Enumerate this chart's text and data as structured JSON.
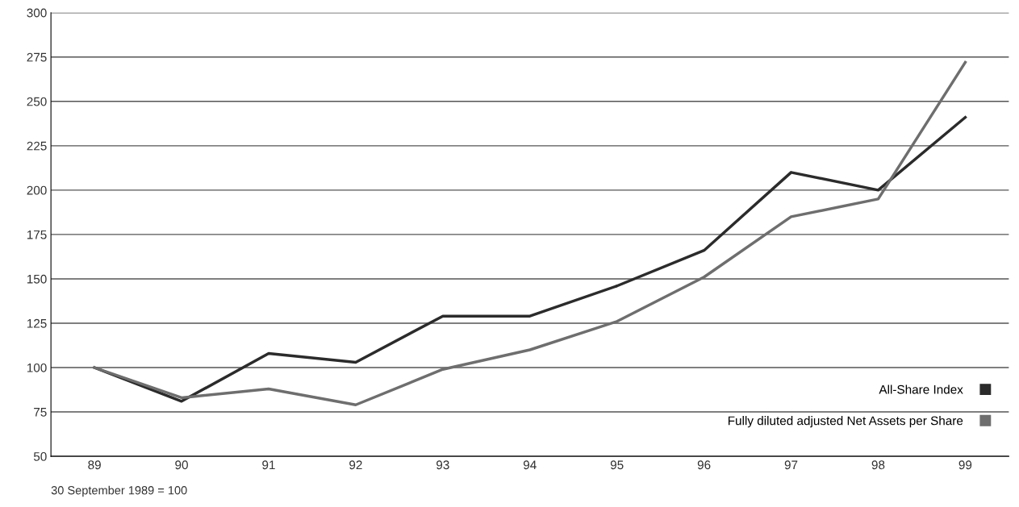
{
  "chart_data": {
    "type": "line",
    "categories": [
      "89",
      "90",
      "91",
      "92",
      "93",
      "94",
      "95",
      "96",
      "97",
      "98",
      "99"
    ],
    "series": [
      {
        "name": "All-Share Index",
        "color": "#2b2b2b",
        "values": [
          100,
          81,
          108,
          103,
          129,
          129,
          146,
          166,
          210,
          200,
          241
        ]
      },
      {
        "name": "Fully diluted adjusted Net Assets per Share",
        "color": "#6e6e6e",
        "values": [
          100,
          83,
          88,
          79,
          99,
          110,
          126,
          151,
          185,
          195,
          272
        ]
      }
    ],
    "ylim": [
      50,
      300
    ],
    "yticks": [
      50,
      75,
      100,
      125,
      150,
      175,
      200,
      225,
      250,
      275,
      300
    ],
    "grid": "y",
    "legend": "bottom right",
    "marker": "none",
    "line_style": "solid",
    "annotations": [
      "30 September 1989 = 100"
    ]
  }
}
